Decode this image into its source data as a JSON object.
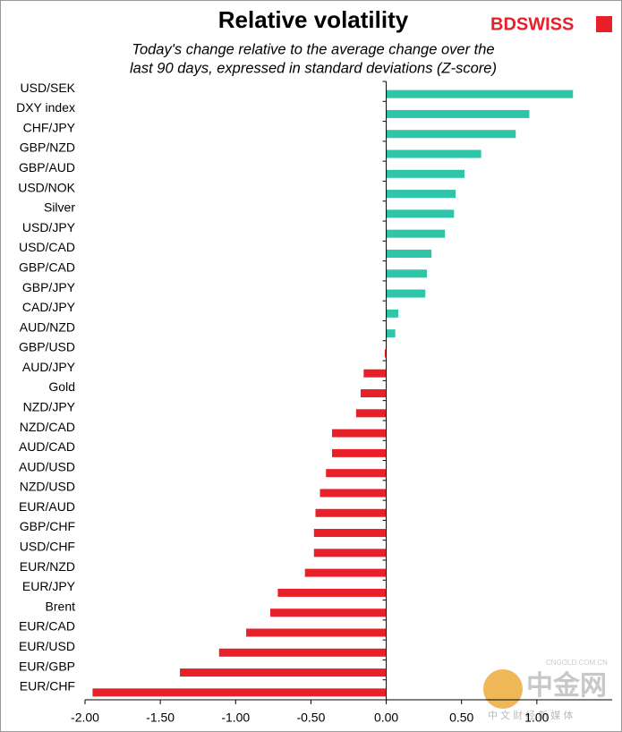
{
  "chart_data": {
    "type": "barh",
    "title": "Relative volatility",
    "subtitle": [
      "Today's change relative to the  average change over the",
      "last 90 days, expressed in standard deviations (Z-score)"
    ],
    "brand": "BDSWISS",
    "watermark": [
      "中金网",
      "中 文 财 经 新 媒 体",
      "CNGOLD.COM.CN"
    ],
    "categories": [
      "USD/SEK",
      "DXY index",
      "CHF/JPY",
      "GBP/NZD",
      "GBP/AUD",
      "USD/NOK",
      "Silver",
      "USD/JPY",
      "USD/CAD",
      "GBP/CAD",
      "GBP/JPY",
      "CAD/JPY",
      "AUD/NZD",
      "GBP/USD",
      "AUD/JPY",
      "Gold",
      "NZD/JPY",
      "NZD/CAD",
      "AUD/CAD",
      "AUD/USD",
      "NZD/USD",
      "EUR/AUD",
      "GBP/CHF",
      "USD/CHF",
      "EUR/NZD",
      "EUR/JPY",
      "Brent",
      "EUR/CAD",
      "EUR/USD",
      "EUR/GBP",
      "EUR/CHF"
    ],
    "values": [
      1.24,
      0.95,
      0.86,
      0.63,
      0.52,
      0.46,
      0.45,
      0.39,
      0.3,
      0.27,
      0.26,
      0.08,
      0.06,
      -0.01,
      -0.15,
      -0.17,
      -0.2,
      -0.36,
      -0.36,
      -0.4,
      -0.44,
      -0.47,
      -0.48,
      -0.48,
      -0.54,
      -0.72,
      -0.77,
      -0.93,
      -1.11,
      -1.37,
      -1.95
    ],
    "positive_color": "#2ec5a8",
    "negative_color": "#e8202a",
    "xlim": [
      -2,
      1.5
    ],
    "xticks": [
      {
        "value": -2,
        "label": "-2.00"
      },
      {
        "value": -1.5,
        "label": "-1.50"
      },
      {
        "value": -1,
        "label": "-1.00"
      },
      {
        "value": -0.5,
        "label": "-0.50"
      },
      {
        "value": 0,
        "label": "0.00"
      },
      {
        "value": 0.5,
        "label": "0.50"
      },
      {
        "value": 1,
        "label": "1.00"
      }
    ],
    "grid": false
  }
}
